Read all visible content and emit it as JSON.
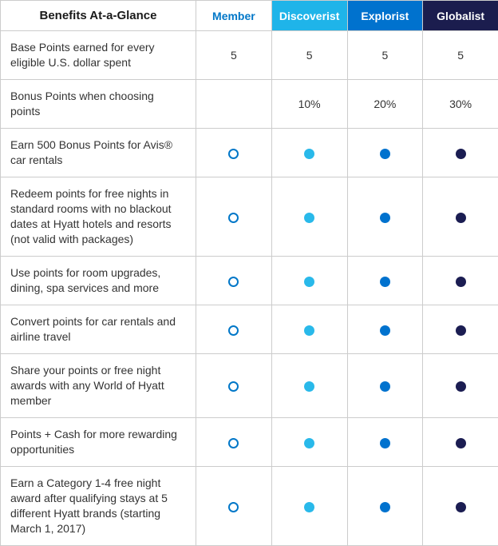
{
  "table": {
    "title": "Benefits At-a-Glance",
    "columns": [
      {
        "label": "Member",
        "header_bg": "#ffffff",
        "header_color": "#0077c8",
        "dot_style": "open",
        "dot_color": "#0077c8"
      },
      {
        "label": "Discoverist",
        "header_bg": "#1fb4e9",
        "header_color": "#ffffff",
        "dot_style": "filled",
        "dot_color": "#29b9ea"
      },
      {
        "label": "Explorist",
        "header_bg": "#0072ce",
        "header_color": "#ffffff",
        "dot_style": "filled",
        "dot_color": "#0072ce"
      },
      {
        "label": "Globalist",
        "header_bg": "#1b1d4e",
        "header_color": "#ffffff",
        "dot_style": "filled",
        "dot_color": "#1b1d52"
      }
    ],
    "rows": [
      {
        "benefit": "Base Points earned for every eligible U.S. dollar spent",
        "values": [
          "5",
          "5",
          "5",
          "5"
        ]
      },
      {
        "benefit": "Bonus Points when choosing points",
        "values": [
          "",
          "10%",
          "20%",
          "30%"
        ]
      },
      {
        "benefit": "Earn 500 Bonus Points for Avis® car rentals",
        "values": [
          "dot",
          "dot",
          "dot",
          "dot"
        ]
      },
      {
        "benefit": "Redeem points for free nights in standard rooms with no blackout dates at Hyatt hotels and resorts (not valid with packages)",
        "values": [
          "dot",
          "dot",
          "dot",
          "dot"
        ]
      },
      {
        "benefit": "Use points for room upgrades, dining, spa services and more",
        "values": [
          "dot",
          "dot",
          "dot",
          "dot"
        ]
      },
      {
        "benefit": "Convert points for car rentals and airline travel",
        "values": [
          "dot",
          "dot",
          "dot",
          "dot"
        ]
      },
      {
        "benefit": "Share your points or free night awards with any World of Hyatt member",
        "values": [
          "dot",
          "dot",
          "dot",
          "dot"
        ]
      },
      {
        "benefit": "Points + Cash for more rewarding opportunities",
        "values": [
          "dot",
          "dot",
          "dot",
          "dot"
        ]
      },
      {
        "benefit": "Earn a Category 1-4 free night award after qualifying stays at 5 different Hyatt brands (starting March 1, 2017)",
        "values": [
          "dot",
          "dot",
          "dot",
          "dot"
        ]
      }
    ]
  }
}
